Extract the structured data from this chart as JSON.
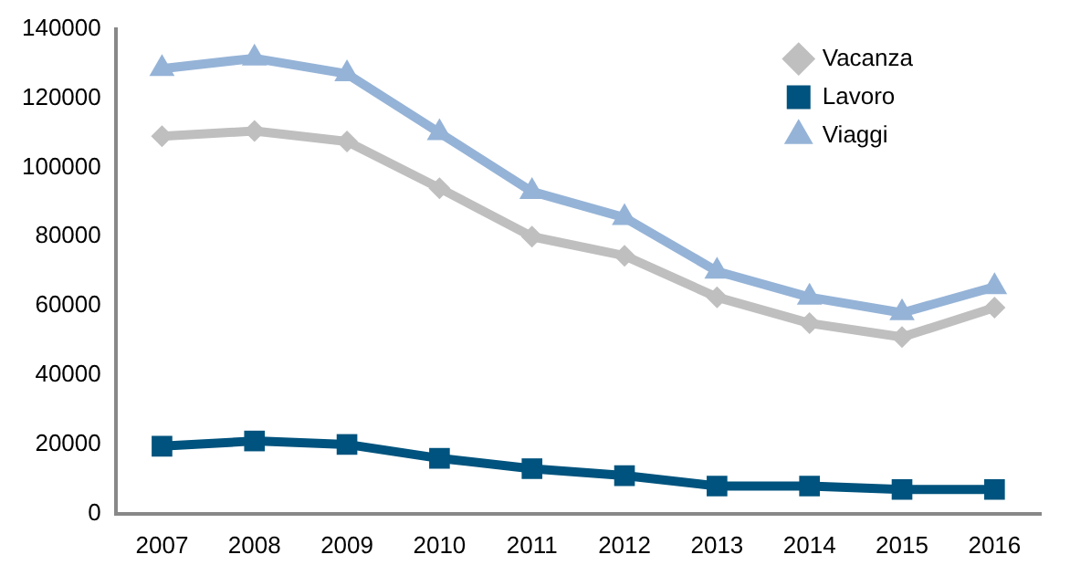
{
  "chart_data": {
    "type": "line",
    "categories": [
      "2007",
      "2008",
      "2009",
      "2010",
      "2011",
      "2012",
      "2013",
      "2014",
      "2015",
      "2016"
    ],
    "series": [
      {
        "name": "Vacanza",
        "color": "#bfbfbf",
        "marker": "diamond",
        "values": [
          109000,
          110500,
          107500,
          94000,
          80000,
          74500,
          62500,
          55000,
          51000,
          59500
        ]
      },
      {
        "name": "Lavoro",
        "color": "#00537e",
        "marker": "square",
        "values": [
          19500,
          21000,
          20000,
          16000,
          13000,
          11000,
          8000,
          8000,
          7000,
          7000
        ]
      },
      {
        "name": "Viaggi",
        "color": "#95b3d7",
        "marker": "triangle",
        "values": [
          128500,
          131500,
          127000,
          110000,
          93000,
          85500,
          70000,
          62500,
          58000,
          65500
        ]
      }
    ],
    "ylim": [
      0,
      140000
    ],
    "yticks": [
      0,
      20000,
      40000,
      60000,
      80000,
      100000,
      120000,
      140000
    ],
    "grid": false,
    "legend": "top right",
    "line_style": "solid"
  }
}
